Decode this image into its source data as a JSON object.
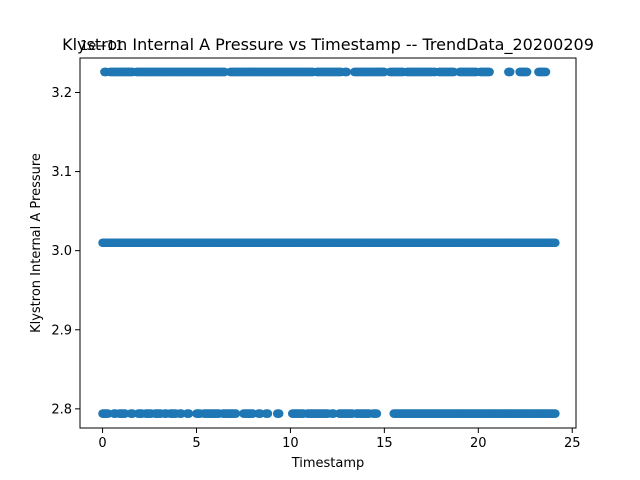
{
  "chart_data": {
    "type": "scatter",
    "title": "Klystron Internal A Pressure vs Timestamp -- TrendData_20200209",
    "xlabel": "Timestamp",
    "ylabel": "Klystron Internal A Pressure",
    "offset_text": "1e−11",
    "xlim": [
      -1.2,
      25.2
    ],
    "ylim": [
      2.7758,
      3.2436
    ],
    "y_scale_exponent": -11,
    "xticks": [
      0,
      5,
      10,
      15,
      20,
      25
    ],
    "xtick_labels": [
      "0",
      "5",
      "10",
      "15",
      "20",
      "25"
    ],
    "yticks": [
      2.8,
      2.9,
      3.0,
      3.1,
      3.2
    ],
    "ytick_labels": [
      "2.8",
      "2.9",
      "3.0",
      "3.1",
      "3.2"
    ],
    "grid": false,
    "marker_color": "#1f77b4",
    "series": [
      {
        "y": 3.226,
        "segments": [
          [
            0.1,
            0.2
          ],
          [
            0.4,
            1.6
          ],
          [
            1.8,
            6.5
          ],
          [
            6.8,
            11.2
          ],
          [
            11.4,
            12.7
          ],
          [
            12.9,
            13.0
          ],
          [
            13.4,
            15.0
          ],
          [
            15.3,
            16.0
          ],
          [
            16.2,
            17.5
          ],
          [
            17.6,
            17.7
          ],
          [
            17.9,
            18.7
          ],
          [
            19.0,
            19.9
          ],
          [
            20.1,
            20.6
          ],
          [
            21.6,
            21.7
          ],
          [
            22.2,
            22.6
          ],
          [
            23.2,
            23.6
          ]
        ]
      },
      {
        "y": 3.01,
        "segments": [
          [
            0.0,
            24.1
          ]
        ]
      },
      {
        "y": 2.794,
        "segments": [
          [
            0.0,
            0.3
          ],
          [
            0.6,
            0.7
          ],
          [
            0.9,
            1.2
          ],
          [
            1.5,
            1.6
          ],
          [
            1.9,
            2.1
          ],
          [
            2.3,
            2.6
          ],
          [
            2.8,
            3.1
          ],
          [
            3.3,
            3.4
          ],
          [
            3.6,
            3.9
          ],
          [
            4.1,
            4.2
          ],
          [
            4.5,
            4.6
          ],
          [
            5.0,
            5.2
          ],
          [
            5.4,
            6.2
          ],
          [
            6.4,
            7.1
          ],
          [
            7.5,
            8.0
          ],
          [
            8.3,
            8.4
          ],
          [
            8.7,
            8.8
          ],
          [
            9.3,
            9.4
          ],
          [
            10.1,
            10.7
          ],
          [
            10.9,
            12.0
          ],
          [
            12.2,
            12.3
          ],
          [
            12.6,
            13.3
          ],
          [
            13.5,
            14.2
          ],
          [
            14.4,
            14.6
          ],
          [
            15.5,
            24.1
          ]
        ]
      }
    ]
  }
}
